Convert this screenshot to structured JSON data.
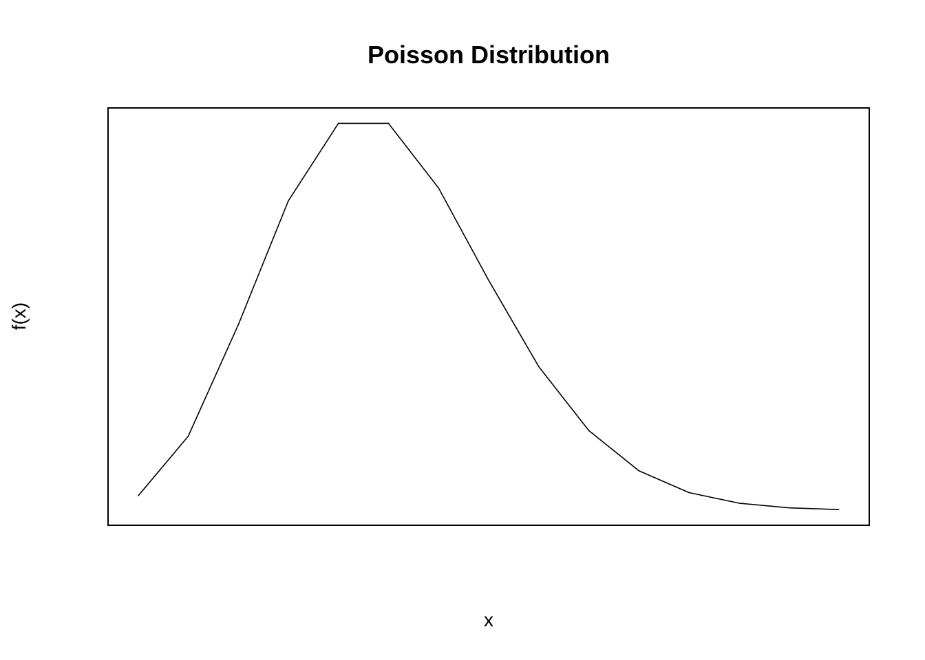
{
  "chart_data": {
    "type": "line",
    "title": "Poisson Distribution",
    "xlabel": "x",
    "ylabel": "f(x)",
    "x": [
      0,
      1,
      2,
      3,
      4,
      5,
      6,
      7,
      8,
      9,
      10,
      11,
      12,
      13,
      14
    ],
    "series": [
      {
        "values": [
          0.0067,
          0.0337,
          0.0842,
          0.1404,
          0.1755,
          0.1755,
          0.1462,
          0.1044,
          0.0653,
          0.0363,
          0.0181,
          0.0082,
          0.0034,
          0.0013,
          0.0005
        ]
      }
    ],
    "xlim": [
      -0.6,
      14.6
    ],
    "ylim": [
      -0.0066,
      0.1825
    ],
    "axes_shown": false,
    "grid": false,
    "legend": "none",
    "line_color": "#000000"
  }
}
